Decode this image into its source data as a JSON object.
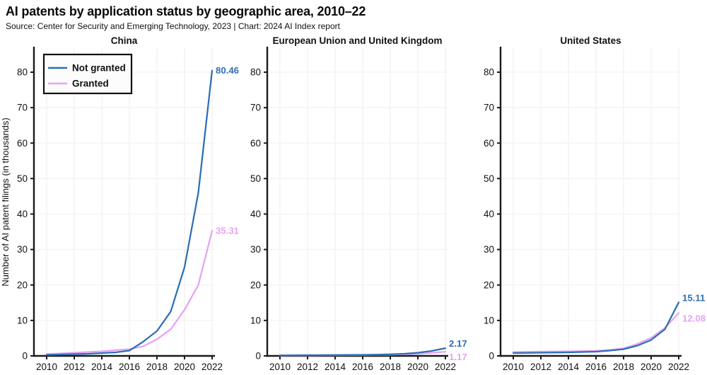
{
  "header": {
    "title": "AI patents by application status by geographic area, 2010–22",
    "subtitle": "Source: Center for Security and Emerging Technology, 2023 | Chart: 2024 AI Index report"
  },
  "legend": {
    "items": [
      {
        "label": "Not granted",
        "color": "#2d6fb5"
      },
      {
        "label": "Granted",
        "color": "#e4a4f2"
      }
    ]
  },
  "colors": {
    "axis": "#1a1a1a",
    "grid": "#f2f2f2",
    "text": "#111111",
    "background": "#ffffff",
    "legend_bg": "#fcfcfc",
    "not_granted": "#2d6fb5",
    "granted": "#e4a4f2"
  },
  "chart_data": {
    "type": "line",
    "title": "AI patents by application status by geographic area, 2010–22",
    "ylabel": "Number of AI patent filings (in thousands)",
    "x": [
      2010,
      2011,
      2012,
      2013,
      2014,
      2015,
      2016,
      2017,
      2018,
      2019,
      2020,
      2021,
      2022
    ],
    "xticks": [
      2010,
      2012,
      2014,
      2016,
      2018,
      2020,
      2022
    ],
    "yticks": [
      0,
      10,
      20,
      30,
      40,
      50,
      60,
      70,
      80
    ],
    "ylim": [
      0,
      87
    ],
    "grid": true,
    "legend_position": "top-left-first-panel",
    "panels": [
      {
        "title": "China",
        "series": [
          {
            "name": "Not granted",
            "color": "#2d6fb5",
            "end_label": "80.46",
            "values": [
              0.3,
              0.4,
              0.5,
              0.6,
              0.8,
              1.0,
              1.5,
              4.0,
              7.0,
              12.5,
              25.0,
              46.0,
              80.46
            ]
          },
          {
            "name": "Granted",
            "color": "#e4a4f2",
            "end_label": "35.31",
            "values": [
              0.5,
              0.7,
              0.9,
              1.1,
              1.3,
              1.6,
              1.9,
              2.7,
              4.7,
              7.5,
              13.0,
              20.0,
              35.31
            ]
          }
        ]
      },
      {
        "title": "European Union and United Kingdom",
        "series": [
          {
            "name": "Not granted",
            "color": "#2d6fb5",
            "end_label": "2.17",
            "values": [
              0.15,
              0.17,
              0.2,
              0.22,
              0.25,
              0.28,
              0.3,
              0.35,
              0.45,
              0.6,
              0.9,
              1.4,
              2.17
            ]
          },
          {
            "name": "Granted",
            "color": "#e4a4f2",
            "end_label": "1.17",
            "values": [
              0.1,
              0.12,
              0.15,
              0.17,
              0.2,
              0.22,
              0.25,
              0.3,
              0.35,
              0.45,
              0.6,
              0.85,
              1.17
            ]
          }
        ]
      },
      {
        "title": "United States",
        "series": [
          {
            "name": "Not granted",
            "color": "#2d6fb5",
            "end_label": "15.11",
            "values": [
              0.8,
              0.85,
              0.9,
              0.95,
              1.0,
              1.1,
              1.2,
              1.5,
              1.9,
              2.9,
              4.5,
              7.5,
              15.11
            ]
          },
          {
            "name": "Granted",
            "color": "#e4a4f2",
            "end_label": "12.08",
            "values": [
              1.1,
              1.15,
              1.2,
              1.25,
              1.3,
              1.35,
              1.45,
              1.7,
              2.1,
              3.4,
              5.1,
              7.9,
              12.08
            ]
          }
        ]
      }
    ]
  }
}
